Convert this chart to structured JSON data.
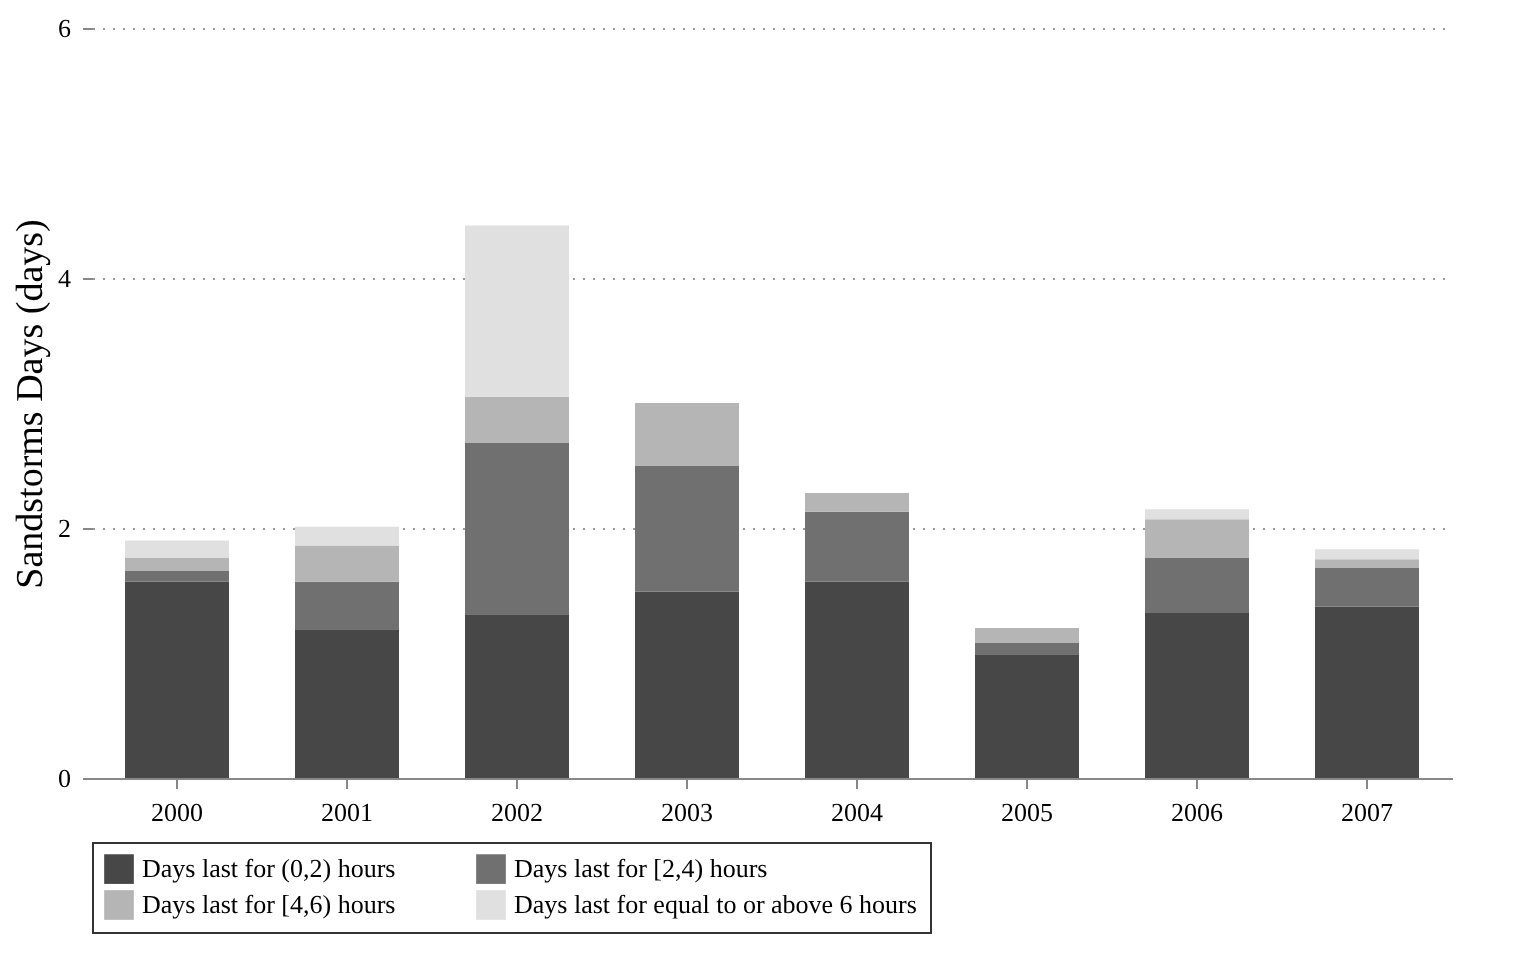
{
  "chart_data": {
    "type": "bar",
    "stacked": true,
    "ylabel": "Sandstorms Days (days)",
    "categories": [
      "2000",
      "2001",
      "2002",
      "2003",
      "2004",
      "2005",
      "2006",
      "2007"
    ],
    "series": [
      {
        "name": "Days last for (0,2) hours",
        "color": "#474747",
        "values": [
          1.57,
          1.19,
          1.31,
          1.49,
          1.57,
          0.99,
          1.32,
          1.37
        ]
      },
      {
        "name": "Days last for [2,4) hours",
        "color": "#707070",
        "values": [
          0.09,
          0.38,
          1.37,
          1.01,
          0.56,
          0.09,
          0.44,
          0.31
        ]
      },
      {
        "name": "Days last for [4,6) hours",
        "color": "#b5b5b5",
        "values": [
          0.1,
          0.29,
          0.37,
          0.5,
          0.15,
          0.12,
          0.31,
          0.07
        ]
      },
      {
        "name": "Days last for equal to or above 6 hours",
        "color": "#e0e0e0",
        "values": [
          0.14,
          0.15,
          1.37,
          0,
          0,
          0,
          0.08,
          0.08
        ]
      }
    ],
    "ylim": [
      0,
      6
    ],
    "yticks": [
      0,
      2,
      4,
      6
    ],
    "grid": "y",
    "legend": "bottom"
  }
}
